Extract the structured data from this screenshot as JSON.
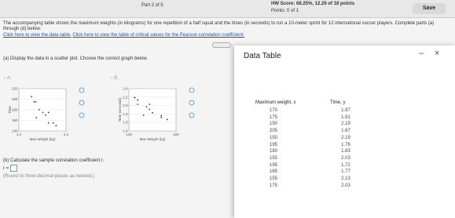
{
  "header": {
    "part": "Part 2 of 5",
    "score": "HW Score: 68.25%, 12.29 of 18 points",
    "points": "Points: 0 of 1",
    "save": "Save"
  },
  "question": {
    "intro": "The accompanying table shows the maximum weights (in kilograms) for one repetition of a half squat and the times (in seconds) to run a 10-meter sprint for 12 international soccer players. Complete parts (a) through (d) below.",
    "link_table": "Click here to view the data table.",
    "link_critical": "Click here to view the table of critical values for the Pearson correlation coefficient.",
    "part_a": "(a) Display the data in a scatter plot. Choose the correct graph below.",
    "options": [
      {
        "label": "A.",
        "ylabel": "Time",
        "xlabel": "Max Weight (kg)",
        "yticks": [
          220,
          200,
          180,
          160,
          140
        ],
        "xticks": [
          1.4,
          2.4
        ]
      },
      {
        "label": "B.",
        "ylabel": "Time (seconds)",
        "xlabel": "Max Weight (kg)",
        "yticks": [
          2.4,
          2.2,
          {
            "value": 2,
            "label": "2.0"
          },
          1.8,
          1.6,
          1.4
        ],
        "xticks": [
          140,
          220
        ]
      }
    ],
    "part_b": "(b) Calculate the sample correlation coefficient r.",
    "r_label": "r =",
    "round_note": "(Round to three decimal places as needed.)"
  },
  "table": {
    "title": "Data Table",
    "headers": [
      "Maximum weight, x",
      "Time, y"
    ],
    "rows": [
      [
        170,
        1.97
      ],
      [
        175,
        1.91
      ],
      [
        150,
        2.19
      ],
      [
        205,
        1.67
      ],
      [
        150,
        2.19
      ],
      [
        195,
        1.76
      ],
      [
        180,
        1.83
      ],
      [
        155,
        2.03
      ],
      [
        195,
        1.72
      ],
      [
        165,
        1.77
      ],
      [
        155,
        2.13
      ],
      [
        175,
        2.03
      ]
    ]
  }
}
